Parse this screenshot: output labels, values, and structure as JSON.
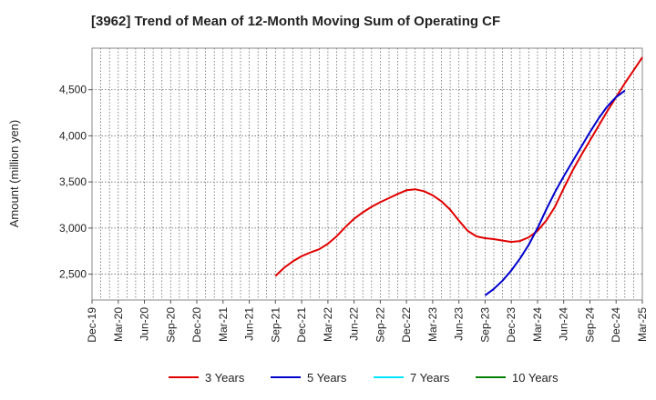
{
  "chart_data": {
    "type": "line",
    "title": "[3962]  Trend of Mean of 12-Month Moving Sum of Operating CF",
    "xlabel": "",
    "ylabel": "Amount (million yen)",
    "ylim": [
      2220,
      4950
    ],
    "yticks": [
      2500,
      3000,
      3500,
      4000,
      4500
    ],
    "ytick_labels": [
      "2,500",
      "3,000",
      "3,500",
      "4,000",
      "4,500"
    ],
    "x_start": "Dec-19",
    "x_months": 63,
    "xtick_labels": [
      "Dec-19",
      "Mar-20",
      "Jun-20",
      "Sep-20",
      "Dec-20",
      "Mar-21",
      "Jun-21",
      "Sep-21",
      "Dec-21",
      "Mar-22",
      "Jun-22",
      "Sep-22",
      "Dec-22",
      "Mar-23",
      "Jun-23",
      "Sep-23",
      "Dec-23",
      "Mar-24",
      "Jun-24",
      "Sep-24",
      "Dec-24",
      "Mar-25"
    ],
    "grid": true,
    "legend_position": "bottom",
    "series": [
      {
        "name": "3 Years",
        "color": "#e00000",
        "start_month_index": 21,
        "values": [
          2480,
          2570,
          2640,
          2695,
          2735,
          2770,
          2830,
          2910,
          3010,
          3100,
          3170,
          3230,
          3280,
          3325,
          3370,
          3410,
          3420,
          3400,
          3355,
          3290,
          3200,
          3080,
          2970,
          2910,
          2890,
          2880,
          2865,
          2850,
          2860,
          2900,
          2970,
          3080,
          3230,
          3430,
          3620,
          3790,
          3950,
          4110,
          4270,
          4420,
          4570,
          4710,
          4850
        ]
      },
      {
        "name": "5 Years",
        "color": "#0000cc",
        "start_month_index": 45,
        "values": [
          2270,
          2340,
          2430,
          2540,
          2670,
          2820,
          3000,
          3200,
          3390,
          3560,
          3720,
          3880,
          4040,
          4190,
          4320,
          4420,
          4490
        ]
      },
      {
        "name": "7 Years",
        "color": "#00e5ff",
        "start_month_index": 0,
        "values": []
      },
      {
        "name": "10 Years",
        "color": "#008000",
        "start_month_index": 0,
        "values": []
      }
    ]
  }
}
